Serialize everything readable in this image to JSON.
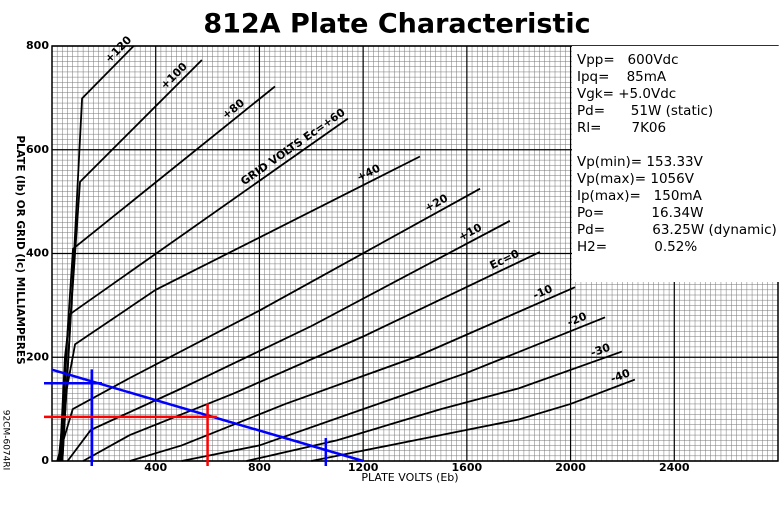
{
  "chart_data": {
    "type": "line",
    "title": "812A Plate Characteristic",
    "xlabel": "PLATE VOLTS (Eb)",
    "ylabel": "PLATE (Ib) OR GRID (Ic) MILLIAMPERES",
    "side_note": "92CM-6074RI",
    "xlim": [
      0,
      2800
    ],
    "ylim": [
      0,
      800
    ],
    "xticks": [
      400,
      800,
      1200,
      1600,
      2000,
      2400
    ],
    "yticks": [
      0,
      200,
      400,
      600,
      800
    ],
    "grid": true,
    "series": [
      {
        "name": "+120",
        "color": "#000000",
        "x": [
          40,
          80,
          116,
          315
        ],
        "values": [
          0,
          350,
          699,
          800
        ]
      },
      {
        "name": "+100",
        "color": "#000000",
        "x": [
          40,
          75,
          108,
          578
        ],
        "values": [
          0,
          300,
          538,
          773
        ]
      },
      {
        "name": "+80",
        "color": "#000000",
        "x": [
          35,
          60,
          81,
          860
        ],
        "values": [
          0,
          250,
          409,
          722
        ]
      },
      {
        "name": "GRID VOLTS Ec=+60",
        "color": "#000000",
        "x": [
          30,
          50,
          69,
          1141
        ],
        "values": [
          0,
          200,
          283,
          660
        ]
      },
      {
        "name": "+40",
        "color": "#000000",
        "x": [
          25,
          50,
          89,
          400,
          1419
        ],
        "values": [
          0,
          120,
          225,
          330,
          587
        ]
      },
      {
        "name": "+20",
        "color": "#000000",
        "x": [
          20,
          80,
          300,
          800,
          1651
        ],
        "values": [
          0,
          100,
          160,
          290,
          525
        ]
      },
      {
        "name": "+10",
        "color": "#000000",
        "x": [
          60,
          150,
          500,
          1000,
          1766
        ],
        "values": [
          0,
          60,
          140,
          260,
          463
        ]
      },
      {
        "name": "Ec=0",
        "color": "#000000",
        "x": [
          120,
          300,
          700,
          1200,
          1882
        ],
        "values": [
          0,
          50,
          130,
          240,
          403
        ]
      },
      {
        "name": "-10",
        "color": "#000000",
        "x": [
          300,
          500,
          900,
          1400,
          2017
        ],
        "values": [
          0,
          30,
          110,
          200,
          335
        ]
      },
      {
        "name": "-20",
        "color": "#000000",
        "x": [
          500,
          800,
          1200,
          1600,
          2133
        ],
        "values": [
          0,
          30,
          100,
          170,
          277
        ]
      },
      {
        "name": "-30",
        "color": "#000000",
        "x": [
          750,
          1100,
          1500,
          1800,
          2198
        ],
        "values": [
          0,
          40,
          100,
          140,
          211
        ]
      },
      {
        "name": "-40",
        "color": "#000000",
        "x": [
          1000,
          1400,
          1800,
          2000,
          2248
        ],
        "values": [
          0,
          40,
          80,
          110,
          157
        ]
      }
    ],
    "load_line": {
      "color": "#0000ff",
      "x": [
        0,
        1200
      ],
      "values": [
        176,
        0
      ]
    },
    "guides": [
      {
        "axis": "x",
        "value": 153.33,
        "color": "#0000ff"
      },
      {
        "axis": "x",
        "value": 1056,
        "color": "#0000ff"
      },
      {
        "axis": "y",
        "value": 150,
        "color": "#0000ff"
      },
      {
        "axis": "y",
        "value": 85,
        "color": "#ff0000"
      },
      {
        "axis": "x",
        "value": 600,
        "color": "#ff0000"
      }
    ],
    "params": [
      "Vpp=   600Vdc",
      "Ipq=    85mA",
      "Vgk= +5.0Vdc",
      "Pd=      51W (static)",
      "Rl=       7K06"
    ],
    "results": [
      "Vp(min)= 153.33V",
      "Vp(max)= 1056V",
      "Ip(max)=   150mA",
      "Po=           16.34W",
      "Pd=           63.25W (dynamic)",
      "H2=           0.52%"
    ]
  }
}
